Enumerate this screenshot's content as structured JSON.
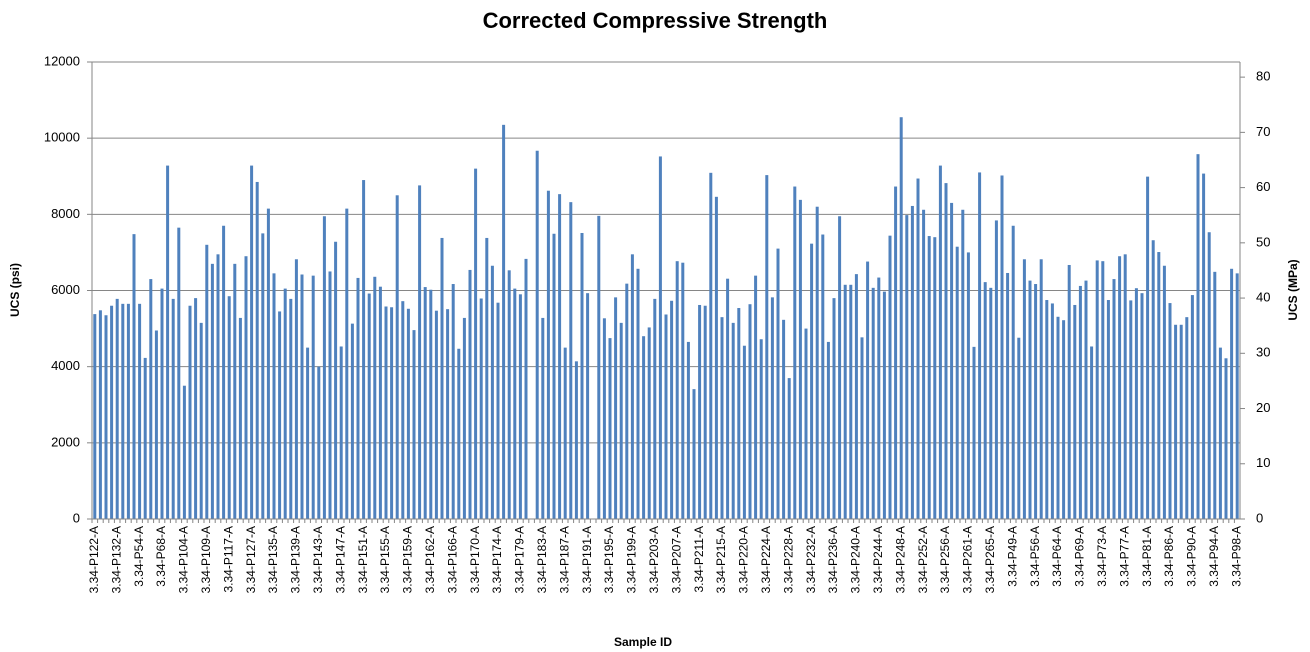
{
  "chart_data": {
    "type": "bar",
    "title": "Corrected Compressive Strength",
    "xlabel": "Sample ID",
    "ylabel": "UCS (psi)",
    "y2label": "UCS (MPa)",
    "color": "#4f81bd",
    "grid": true,
    "ylim": [
      0,
      12000
    ],
    "yticks": [
      0,
      2000,
      4000,
      6000,
      8000,
      10000,
      12000
    ],
    "y2lim": [
      0,
      82.74
    ],
    "y2ticks": [
      0,
      10,
      20,
      30,
      40,
      50,
      60,
      70,
      80
    ],
    "categories": [
      "3.34-P122-A",
      null,
      null,
      null,
      "3.34-P132-A",
      null,
      null,
      null,
      "3.34-P54-A",
      null,
      null,
      null,
      "3.34-P68-A",
      null,
      null,
      null,
      "3.34-P104-A",
      null,
      null,
      null,
      "3.34-P109-A",
      null,
      null,
      null,
      "3.34-P117-A",
      null,
      null,
      null,
      "3.34-P127-A",
      null,
      null,
      null,
      "3.34-P135-A",
      null,
      null,
      null,
      "3.34-P139-A",
      null,
      null,
      null,
      "3.34-P143-A",
      null,
      null,
      null,
      "3.34-P147-A",
      null,
      null,
      null,
      "3.34-P151-A",
      null,
      null,
      null,
      "3.34-P155-A",
      null,
      null,
      null,
      "3.34-P159-A",
      null,
      null,
      null,
      "3.34-P162-A",
      null,
      null,
      null,
      "3.34-P166-A",
      null,
      null,
      null,
      "3.34-P170-A",
      null,
      null,
      null,
      "3.34-P174-A",
      null,
      null,
      null,
      "3.34-P179-A",
      null,
      null,
      null,
      "3.34-P183-A",
      null,
      null,
      null,
      "3.34-P187-A",
      null,
      null,
      null,
      "3.34-P191-A",
      null,
      null,
      null,
      "3.34-P195-A",
      null,
      null,
      null,
      "3.34-P199-A",
      null,
      null,
      null,
      "3.34-P203-A",
      null,
      null,
      null,
      "3.34-P207-A",
      null,
      null,
      null,
      "3.34-P211-A",
      null,
      null,
      null,
      "3.34-P215-A",
      null,
      null,
      null,
      "3.34-P220-A",
      null,
      null,
      null,
      "3.34-P224-A",
      null,
      null,
      null,
      "3.34-P228-A",
      null,
      null,
      null,
      "3.34-P232-A",
      null,
      null,
      null,
      "3.34-P236-A",
      null,
      null,
      null,
      "3.34-P240-A",
      null,
      null,
      null,
      "3.34-P244-A",
      null,
      null,
      null,
      "3.34-P248-A",
      null,
      null,
      null,
      "3.34-P252-A",
      null,
      null,
      null,
      "3.34-P256-A",
      null,
      null,
      null,
      "3.34-P261-A",
      null,
      null,
      null,
      "3.34-P265-A",
      null,
      null,
      null,
      "3.34-P49-A",
      null,
      null,
      null,
      "3.34-P56-A",
      null,
      null,
      null,
      "3.34-P64-A",
      null,
      null,
      null,
      "3.34-P69-A",
      null,
      null,
      null,
      "3.34-P73-A",
      null,
      null,
      null,
      "3.34-P77-A",
      null,
      null,
      null,
      "3.34-P81-A",
      null,
      null,
      null,
      "3.34-P86-A",
      null,
      null,
      null,
      "3.34-P90-A",
      null,
      null,
      null,
      "3.34-P94-A",
      null,
      null,
      null,
      "3.34-P98-A"
    ],
    "values": [
      5380,
      5480,
      5350,
      5600,
      5780,
      5650,
      5650,
      7480,
      5650,
      4230,
      6300,
      4950,
      6050,
      9280,
      5780,
      7650,
      3500,
      5600,
      5800,
      5150,
      7200,
      6700,
      6950,
      7700,
      5850,
      6700,
      5280,
      6900,
      9280,
      8850,
      7500,
      8150,
      6450,
      5450,
      6050,
      5780,
      6820,
      6420,
      4500,
      6390,
      4000,
      7950,
      6500,
      7280,
      4530,
      8150,
      5130,
      6330,
      8900,
      5920,
      6360,
      6100,
      5580,
      5560,
      8500,
      5720,
      5520,
      4960,
      8760,
      6090,
      6020,
      5470,
      7380,
      5510,
      6170,
      4470,
      5280,
      6540,
      9200,
      5790,
      7380,
      6650,
      5680,
      10350,
      6530,
      6050,
      5900,
      6830,
      null,
      9670,
      5280,
      8620,
      7490,
      8530,
      4500,
      8320,
      4140,
      7510,
      5930,
      null,
      7960,
      5270,
      4750,
      5820,
      5150,
      6180,
      6950,
      6570,
      4800,
      5030,
      5780,
      9520,
      5370,
      5730,
      6770,
      6730,
      4650,
      3410,
      5620,
      5600,
      9090,
      8460,
      5300,
      6310,
      5150,
      5540,
      4550,
      5640,
      6390,
      4720,
      9030,
      5820,
      7100,
      5230,
      3700,
      8730,
      8380,
      5000,
      7230,
      8200,
      7470,
      4650,
      5800,
      7950,
      6150,
      6150,
      6430,
      4770,
      6760,
      6070,
      6340,
      5970,
      7440,
      8730,
      10550,
      7980,
      8220,
      8940,
      8120,
      7430,
      7400,
      9280,
      8820,
      8300,
      7150,
      8120,
      7000,
      4520,
      9100,
      6220,
      6070,
      7840,
      9020,
      6460,
      7700,
      4760,
      6820,
      6260,
      6170,
      6820,
      5750,
      5660,
      5310,
      5220,
      6670,
      5620,
      6120,
      6260,
      4530,
      6790,
      6770,
      5750,
      6300,
      6900,
      6950,
      5740,
      6060,
      5930,
      8990,
      7320,
      7010,
      6650,
      5670,
      5100,
      5100,
      5300,
      5880,
      9580,
      9070,
      7530,
      6490,
      4500,
      4220,
      6570,
      6450
    ]
  }
}
